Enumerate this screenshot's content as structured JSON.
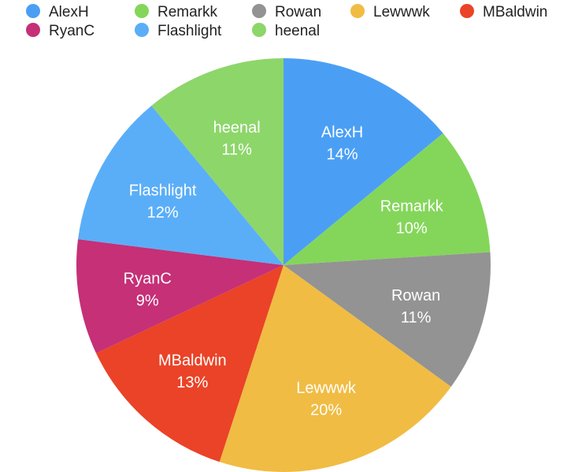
{
  "chart_data": {
    "type": "pie",
    "title": "",
    "legend_position": "top",
    "slices": [
      {
        "name": "AlexH",
        "value": 14,
        "label": "14%",
        "color": "#4a9ff5"
      },
      {
        "name": "Remarkk",
        "value": 10,
        "label": "10%",
        "color": "#84d65a"
      },
      {
        "name": "Rowan",
        "value": 11,
        "label": "11%",
        "color": "#939393"
      },
      {
        "name": "Lewwwk",
        "value": 20,
        "label": "20%",
        "color": "#f0bc43"
      },
      {
        "name": "MBaldwin",
        "value": 13,
        "label": "13%",
        "color": "#ea4327"
      },
      {
        "name": "RyanC",
        "value": 9,
        "label": "9%",
        "color": "#c53077"
      },
      {
        "name": "Flashlight",
        "value": 12,
        "label": "12%",
        "color": "#5aaef7"
      },
      {
        "name": "heenal",
        "value": 11,
        "label": "11%",
        "color": "#8dd66a"
      }
    ]
  }
}
